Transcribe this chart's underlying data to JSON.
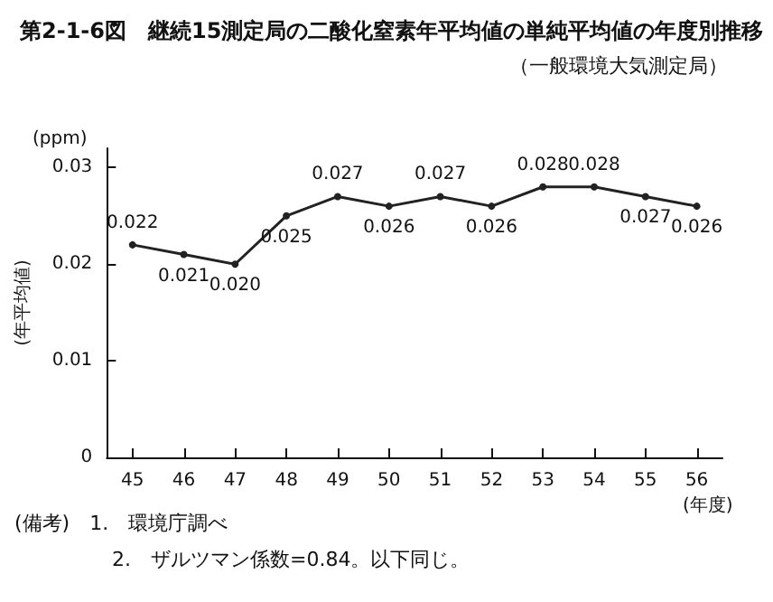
{
  "chart_data": {
    "type": "line",
    "title": "第2-1-6図　継続15測定局の二酸化窒素年平均値の単純平均値の年度別推移",
    "subtitle": "（一般環境大気測定局）",
    "ylabel": "(年平均値)",
    "xlabel": "(年度)",
    "categories": [
      "45",
      "46",
      "47",
      "48",
      "49",
      "50",
      "51",
      "52",
      "53",
      "54",
      "55",
      "56"
    ],
    "series": [
      {
        "color": "#222222",
        "values": [
          0.022,
          0.021,
          0.02,
          0.025,
          0.027,
          0.026,
          0.027,
          0.026,
          0.028,
          0.028,
          0.027,
          0.026
        ],
        "value_labels": [
          "0.022",
          "0.021",
          "0.020",
          "0.025",
          "0.027",
          "0.026",
          "0.027",
          "0.026",
          "0.028",
          "0.028",
          "0.027",
          "0.026"
        ]
      }
    ],
    "ylim": [
      0,
      0.032
    ],
    "yticks": [
      0,
      0.01,
      0.02,
      0.03
    ],
    "grid": false,
    "marker": "circle",
    "line_style": "solid",
    "annotations": [
      "(ppm)",
      "(備考)　1.　環境庁調べ",
      "2.　ザルツマン係数=0.84。以下同じ。"
    ]
  }
}
